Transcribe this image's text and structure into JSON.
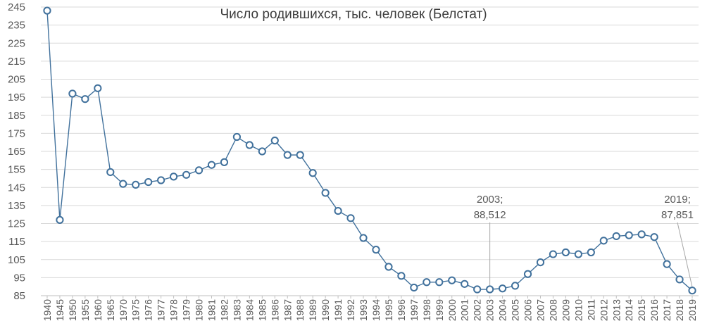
{
  "chart_data": {
    "type": "line",
    "title": "Число родившихся, тыс. человек (Белстат)",
    "xlabel": "",
    "ylabel": "",
    "ylim": [
      85,
      245
    ],
    "yticks": [
      "85",
      "95",
      "105",
      "115",
      "125",
      "135",
      "145",
      "155",
      "165",
      "175",
      "185",
      "195",
      "205",
      "215",
      "225",
      "235",
      "245"
    ],
    "grid": true,
    "legend": "none",
    "line_color": "#41719c",
    "marker_fill": "#ffffff",
    "categories": [
      "1940",
      "1945",
      "1950",
      "1955",
      "1960",
      "1965",
      "1970",
      "1975",
      "1976",
      "1977",
      "1978",
      "1979",
      "1980",
      "1981",
      "1982",
      "1983",
      "1984",
      "1985",
      "1986",
      "1987",
      "1988",
      "1989",
      "1990",
      "1991",
      "1992",
      "1993",
      "1994",
      "1995",
      "1996",
      "1997",
      "1998",
      "1999",
      "2000",
      "2001",
      "2002",
      "2003",
      "2004",
      "2005",
      "2006",
      "2007",
      "2008",
      "2009",
      "2010",
      "2011",
      "2012",
      "2013",
      "2014",
      "2015",
      "2016",
      "2017",
      "2018",
      "2019"
    ],
    "values": [
      243,
      127,
      197,
      194,
      200,
      153.5,
      147,
      146.5,
      148,
      149,
      151,
      152,
      154.5,
      157.5,
      159,
      173,
      168.5,
      165,
      171,
      163,
      163,
      153,
      142,
      132,
      128,
      117,
      110.5,
      101,
      96,
      89.5,
      92.5,
      92.5,
      93.5,
      91.5,
      88.5,
      88.512,
      89,
      90.5,
      97,
      103.5,
      108,
      109,
      108,
      109,
      115.5,
      118,
      118.5,
      119,
      117.5,
      102.5,
      94,
      87.851
    ],
    "annotations": [
      {
        "category": "2003",
        "line1": "2003;",
        "line2": "88,512"
      },
      {
        "category": "2019",
        "line1": "2019;",
        "line2": "87,851"
      }
    ]
  }
}
